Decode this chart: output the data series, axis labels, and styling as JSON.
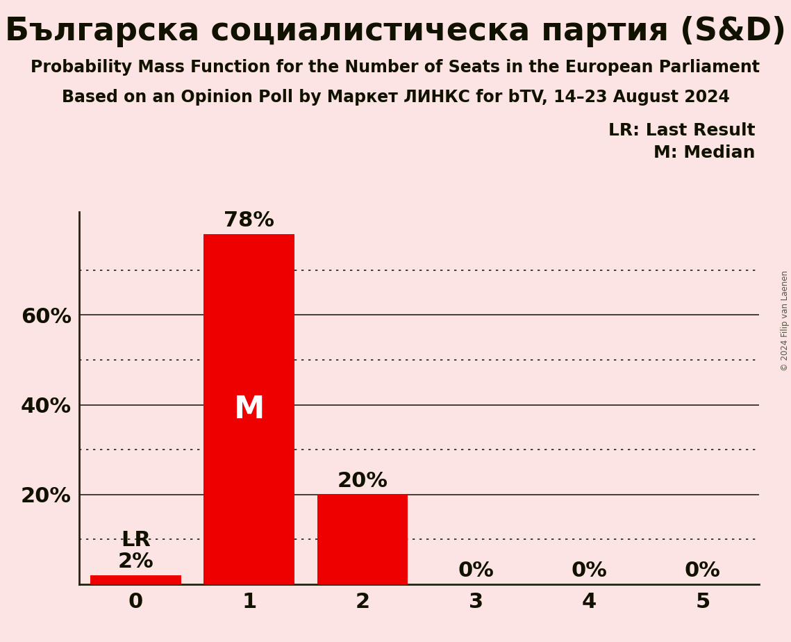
{
  "title": "Българска социалистическа партия (S&D)",
  "subtitle1": "Probability Mass Function for the Number of Seats in the European Parliament",
  "subtitle2": "Based on an Opinion Poll by Маркет ЛИНКС for bTV, 14–23 August 2024",
  "copyright": "© 2024 Filip van Laenen",
  "categories": [
    0,
    1,
    2,
    3,
    4,
    5
  ],
  "values": [
    0.02,
    0.78,
    0.2,
    0.0,
    0.0,
    0.0
  ],
  "bar_color": "#ee0000",
  "background_color": "#fce4e4",
  "text_color": "#111100",
  "median": 1,
  "last_result": 0,
  "legend_lr": "LR: Last Result",
  "legend_m": "M: Median",
  "solid_yticks": [
    0.2,
    0.4,
    0.6
  ],
  "dotted_yticks": [
    0.1,
    0.3,
    0.5,
    0.7
  ],
  "ylabel_ticks": [
    0.2,
    0.4,
    0.6
  ],
  "ylim": [
    0,
    0.83
  ],
  "xlim": [
    -0.5,
    5.5
  ]
}
